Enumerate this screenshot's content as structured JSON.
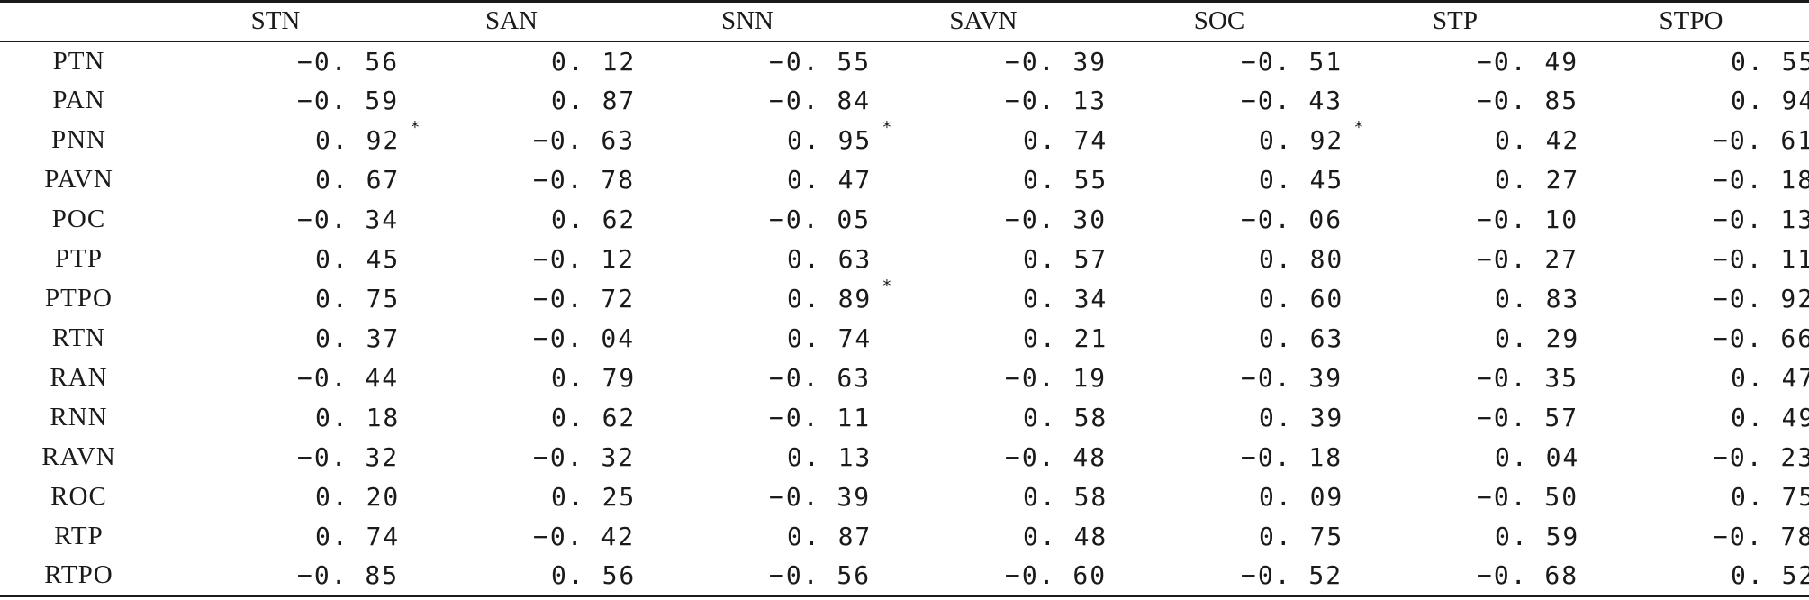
{
  "table": {
    "columns": [
      "",
      "STN",
      "SAN",
      "SNN",
      "SAVN",
      "SOC",
      "STP",
      "STPO"
    ],
    "rows": [
      {
        "label": "PTN",
        "cells": [
          {
            "v": "−0. 56",
            "s": ""
          },
          {
            "v": "0. 12",
            "s": ""
          },
          {
            "v": "−0. 55",
            "s": ""
          },
          {
            "v": "−0. 39",
            "s": ""
          },
          {
            "v": "−0. 51",
            "s": ""
          },
          {
            "v": "−0. 49",
            "s": ""
          },
          {
            "v": "0. 55",
            "s": ""
          }
        ]
      },
      {
        "label": "PAN",
        "cells": [
          {
            "v": "−0. 59",
            "s": ""
          },
          {
            "v": "0. 87",
            "s": ""
          },
          {
            "v": "−0. 84",
            "s": ""
          },
          {
            "v": "−0. 13",
            "s": ""
          },
          {
            "v": "−0. 43",
            "s": ""
          },
          {
            "v": "−0. 85",
            "s": ""
          },
          {
            "v": "0. 94",
            "s": "*"
          }
        ]
      },
      {
        "label": "PNN",
        "cells": [
          {
            "v": "0. 92",
            "s": "*"
          },
          {
            "v": "−0. 63",
            "s": ""
          },
          {
            "v": "0. 95",
            "s": "*"
          },
          {
            "v": "0. 74",
            "s": ""
          },
          {
            "v": "0. 92",
            "s": "*"
          },
          {
            "v": "0. 42",
            "s": ""
          },
          {
            "v": "−0. 61",
            "s": ""
          }
        ]
      },
      {
        "label": "PAVN",
        "cells": [
          {
            "v": "0. 67",
            "s": ""
          },
          {
            "v": "−0. 78",
            "s": ""
          },
          {
            "v": "0. 47",
            "s": ""
          },
          {
            "v": "0. 55",
            "s": ""
          },
          {
            "v": "0. 45",
            "s": ""
          },
          {
            "v": "0. 27",
            "s": ""
          },
          {
            "v": "−0. 18",
            "s": ""
          }
        ]
      },
      {
        "label": "POC",
        "cells": [
          {
            "v": "−0. 34",
            "s": ""
          },
          {
            "v": "0. 62",
            "s": ""
          },
          {
            "v": "−0. 05",
            "s": ""
          },
          {
            "v": "−0. 30",
            "s": ""
          },
          {
            "v": "−0. 06",
            "s": ""
          },
          {
            "v": "−0. 10",
            "s": ""
          },
          {
            "v": "−0. 13",
            "s": ""
          }
        ]
      },
      {
        "label": "PTP",
        "cells": [
          {
            "v": "0. 45",
            "s": ""
          },
          {
            "v": "−0. 12",
            "s": ""
          },
          {
            "v": "0. 63",
            "s": ""
          },
          {
            "v": "0. 57",
            "s": ""
          },
          {
            "v": "0. 80",
            "s": ""
          },
          {
            "v": "−0. 27",
            "s": ""
          },
          {
            "v": "−0. 11",
            "s": ""
          }
        ]
      },
      {
        "label": "PTPO",
        "cells": [
          {
            "v": "0. 75",
            "s": ""
          },
          {
            "v": "−0. 72",
            "s": ""
          },
          {
            "v": "0. 89",
            "s": "*"
          },
          {
            "v": "0. 34",
            "s": ""
          },
          {
            "v": "0. 60",
            "s": ""
          },
          {
            "v": "0. 83",
            "s": ""
          },
          {
            "v": "−0. 92",
            "s": "*"
          }
        ]
      },
      {
        "label": "RTN",
        "cells": [
          {
            "v": "0. 37",
            "s": ""
          },
          {
            "v": "−0. 04",
            "s": ""
          },
          {
            "v": "0. 74",
            "s": ""
          },
          {
            "v": "0. 21",
            "s": ""
          },
          {
            "v": "0. 63",
            "s": ""
          },
          {
            "v": "0. 29",
            "s": ""
          },
          {
            "v": "−0. 66",
            "s": ""
          }
        ]
      },
      {
        "label": "RAN",
        "cells": [
          {
            "v": "−0. 44",
            "s": ""
          },
          {
            "v": "0. 79",
            "s": ""
          },
          {
            "v": "−0. 63",
            "s": ""
          },
          {
            "v": "−0. 19",
            "s": ""
          },
          {
            "v": "−0. 39",
            "s": ""
          },
          {
            "v": "−0. 35",
            "s": ""
          },
          {
            "v": "0. 47",
            "s": ""
          }
        ]
      },
      {
        "label": "RNN",
        "cells": [
          {
            "v": "0. 18",
            "s": ""
          },
          {
            "v": "0. 62",
            "s": ""
          },
          {
            "v": "−0. 11",
            "s": ""
          },
          {
            "v": "0. 58",
            "s": ""
          },
          {
            "v": "0. 39",
            "s": ""
          },
          {
            "v": "−0. 57",
            "s": ""
          },
          {
            "v": "0. 49",
            "s": ""
          }
        ]
      },
      {
        "label": "RAVN",
        "cells": [
          {
            "v": "−0. 32",
            "s": ""
          },
          {
            "v": "−0. 32",
            "s": ""
          },
          {
            "v": "0. 13",
            "s": ""
          },
          {
            "v": "−0. 48",
            "s": ""
          },
          {
            "v": "−0. 18",
            "s": ""
          },
          {
            "v": "0. 04",
            "s": ""
          },
          {
            "v": "−0. 23",
            "s": ""
          }
        ]
      },
      {
        "label": "ROC",
        "cells": [
          {
            "v": "0. 20",
            "s": ""
          },
          {
            "v": "0. 25",
            "s": ""
          },
          {
            "v": "−0. 39",
            "s": ""
          },
          {
            "v": "0. 58",
            "s": ""
          },
          {
            "v": "0. 09",
            "s": ""
          },
          {
            "v": "−0. 50",
            "s": ""
          },
          {
            "v": "0. 75",
            "s": ""
          }
        ]
      },
      {
        "label": "RTP",
        "cells": [
          {
            "v": "0. 74",
            "s": ""
          },
          {
            "v": "−0. 42",
            "s": ""
          },
          {
            "v": "0. 87",
            "s": ""
          },
          {
            "v": "0. 48",
            "s": ""
          },
          {
            "v": "0. 75",
            "s": ""
          },
          {
            "v": "0. 59",
            "s": ""
          },
          {
            "v": "−0. 78",
            "s": ""
          }
        ]
      },
      {
        "label": "RTPO",
        "cells": [
          {
            "v": "−0. 85",
            "s": ""
          },
          {
            "v": "0. 56",
            "s": ""
          },
          {
            "v": "−0. 56",
            "s": ""
          },
          {
            "v": "−0. 60",
            "s": ""
          },
          {
            "v": "−0. 52",
            "s": ""
          },
          {
            "v": "−0. 68",
            "s": ""
          },
          {
            "v": "0. 52",
            "s": ""
          }
        ]
      }
    ]
  }
}
